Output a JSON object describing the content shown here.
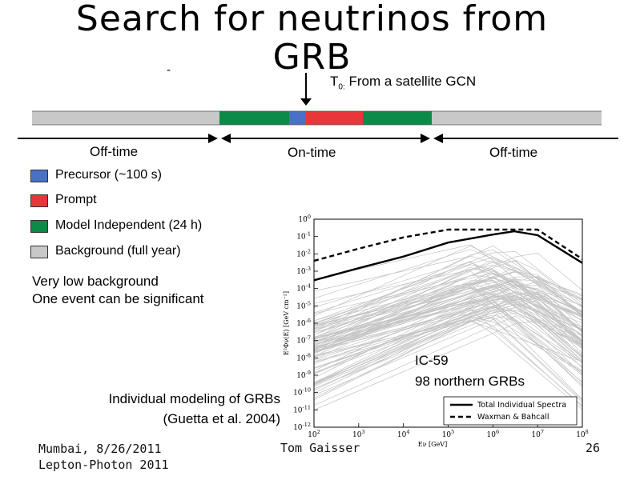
{
  "title": {
    "line1": "Search for neutrinos from",
    "line2": "GRB"
  },
  "stray_mark": "-",
  "timeline": {
    "t0_prefix": "T",
    "t0_sub": "0:",
    "t0_text": " From a satellite GCN",
    "off_left": "Off-time",
    "on": "On-time",
    "off_right": "Off-time",
    "colors": {
      "background": "#c8c8c8",
      "model": "#0c8a47",
      "precursor": "#4a72c4",
      "prompt": "#e8363a"
    }
  },
  "legend": [
    {
      "label": "Precursor (~100 s)",
      "color": "#4a72c4"
    },
    {
      "label": "Prompt",
      "color": "#e8363a"
    },
    {
      "label": "Model Independent (24 h)",
      "color": "#0c8a47"
    },
    {
      "label": "Background (full year)",
      "color": "#c8c8c8"
    }
  ],
  "notes": {
    "line1": "Very low background",
    "line2": "One event can be significant"
  },
  "modeling": {
    "line1": "Individual modeling of GRBs",
    "line2": "(Guetta et al. 2004)"
  },
  "footer": {
    "left1": "Mumbai, 8/26/2011",
    "left2": "Lepton-Photon 2011",
    "center": "Tom Gaisser",
    "page": "26"
  },
  "chart_data": {
    "type": "line",
    "xlabel": "Eν [GeV]",
    "ylabel": "E²Φν(E) [GeV cm⁻²]",
    "xscale": "log",
    "yscale": "log",
    "xlim": [
      100,
      100000000
    ],
    "ylim": [
      1e-12,
      1
    ],
    "x_ticks": [
      "10^2",
      "10^3",
      "10^4",
      "10^5",
      "10^6",
      "10^7",
      "10^8"
    ],
    "y_ticks": [
      "10^0",
      "10^-1",
      "10^-2",
      "10^-3",
      "10^-4",
      "10^-5",
      "10^-6",
      "10^-7",
      "10^-8",
      "10^-9",
      "10^-10",
      "10^-11",
      "10^-12"
    ],
    "annotation_line1": "IC-59",
    "annotation_line2": "98 northern GRBs",
    "individual_curve_count": 98,
    "series": [
      {
        "name": "Total Individual Spectra",
        "style": "solid",
        "x": [
          100,
          1000,
          10000,
          100000,
          1000000,
          3000000,
          10000000,
          100000000
        ],
        "y": [
          0.0003,
          0.0015,
          0.007,
          0.045,
          0.13,
          0.2,
          0.12,
          0.003
        ]
      },
      {
        "name": "Waxman & Bahcall",
        "style": "dashed",
        "x": [
          100,
          1000,
          10000,
          100000,
          1000000,
          3000000,
          10000000,
          100000000
        ],
        "y": [
          0.004,
          0.02,
          0.09,
          0.25,
          0.25,
          0.25,
          0.25,
          0.005
        ]
      }
    ]
  }
}
